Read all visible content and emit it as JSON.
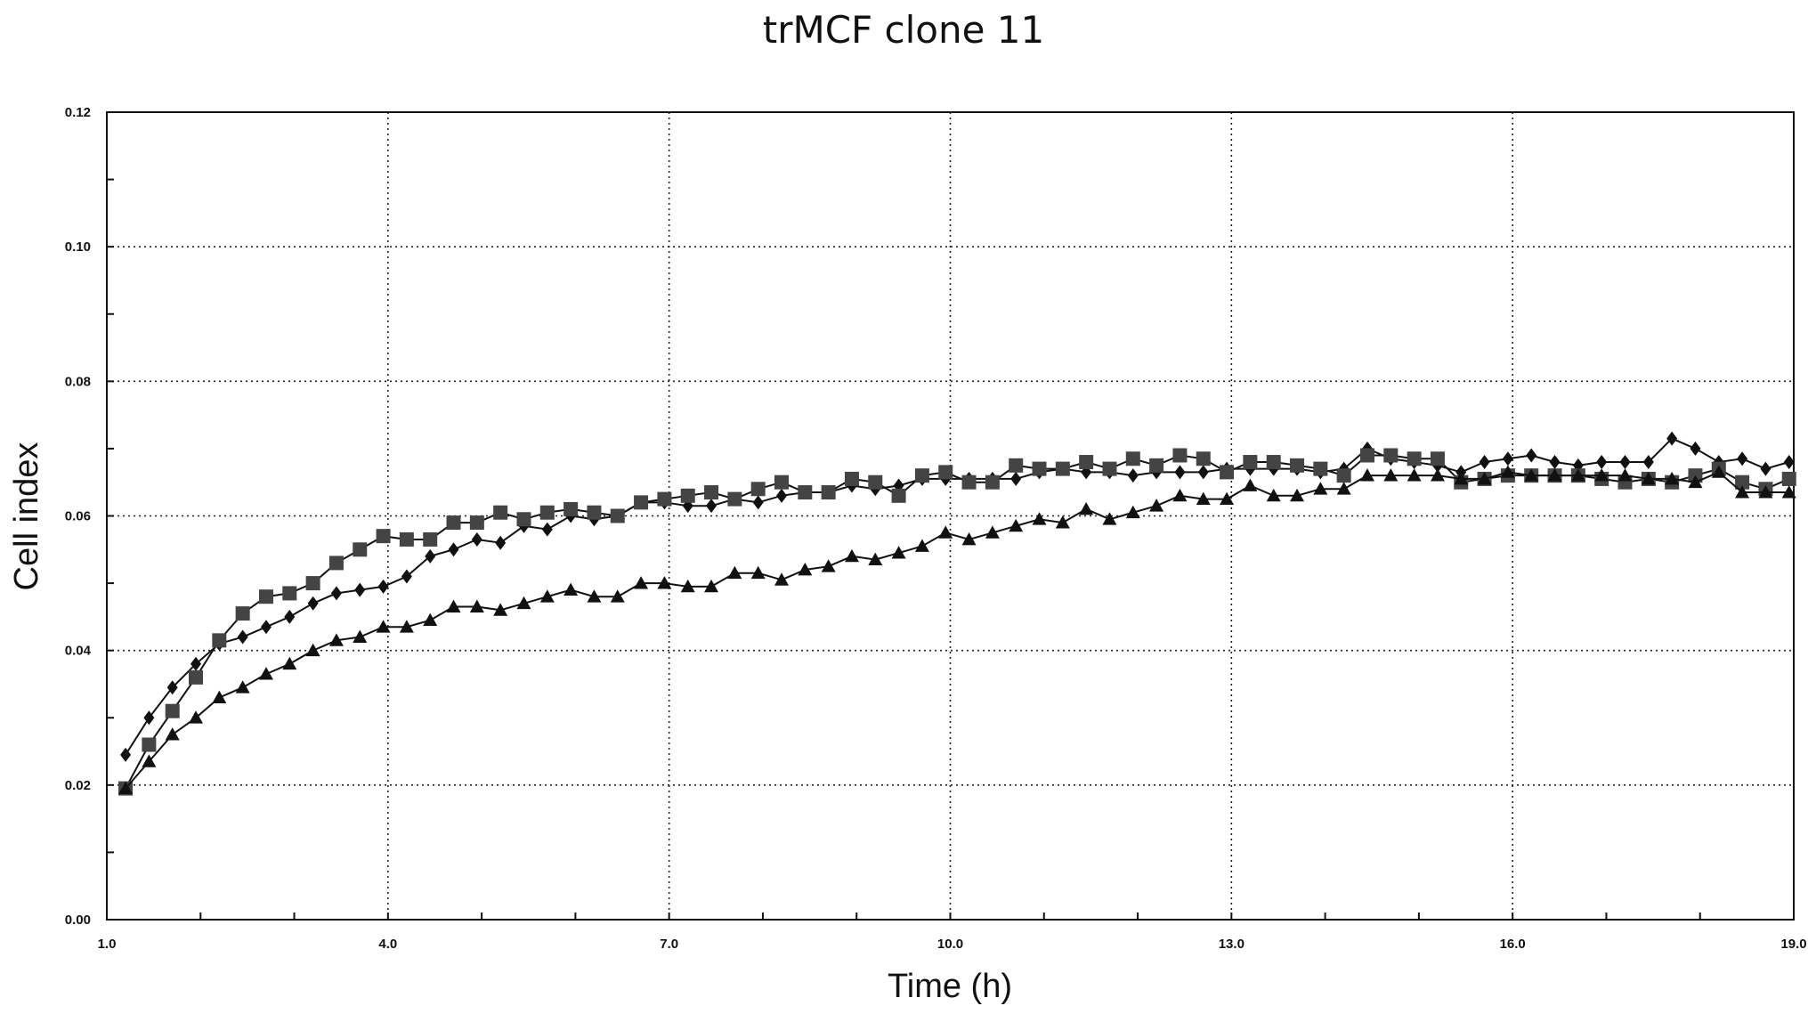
{
  "chart_data": {
    "type": "line",
    "title": "trMCF clone 11",
    "xlabel": "Time (h)",
    "ylabel": "Cell index",
    "xlim": [
      1.0,
      19.0
    ],
    "ylim": [
      0.0,
      0.12
    ],
    "x_ticks": [
      1.0,
      4.0,
      7.0,
      10.0,
      13.0,
      16.0,
      19.0
    ],
    "x_tick_labels": [
      "1.0",
      "4.0",
      "7.0",
      "10.0",
      "13.0",
      "16.0",
      "19.0"
    ],
    "y_ticks": [
      0.0,
      0.02,
      0.04,
      0.06,
      0.08,
      0.1,
      0.12
    ],
    "y_tick_labels": [
      "0.00",
      "0.02",
      "0.04",
      "0.06",
      "0.08",
      "0.10",
      "0.12"
    ],
    "grid": true,
    "x": [
      1.2,
      1.45,
      1.7,
      1.95,
      2.2,
      2.45,
      2.7,
      2.95,
      3.2,
      3.45,
      3.7,
      3.95,
      4.2,
      4.45,
      4.7,
      4.95,
      5.2,
      5.45,
      5.7,
      5.95,
      6.2,
      6.45,
      6.7,
      6.95,
      7.2,
      7.45,
      7.7,
      7.95,
      8.2,
      8.45,
      8.7,
      8.95,
      9.2,
      9.45,
      9.7,
      9.95,
      10.2,
      10.45,
      10.7,
      10.95,
      11.2,
      11.45,
      11.7,
      11.95,
      12.2,
      12.45,
      12.7,
      12.95,
      13.2,
      13.45,
      13.7,
      13.95,
      14.2,
      14.45,
      14.7,
      14.95,
      15.2,
      15.45,
      15.7,
      15.95,
      16.2,
      16.45,
      16.7,
      16.95,
      17.2,
      17.45,
      17.7,
      17.95,
      18.2,
      18.45,
      18.7,
      18.95
    ],
    "series": [
      {
        "marker": "diamond",
        "values": [
          0.0245,
          0.03,
          0.0345,
          0.038,
          0.041,
          0.042,
          0.0435,
          0.045,
          0.047,
          0.0485,
          0.049,
          0.0495,
          0.051,
          0.054,
          0.055,
          0.0565,
          0.056,
          0.0585,
          0.058,
          0.06,
          0.0595,
          0.06,
          0.062,
          0.062,
          0.0615,
          0.0615,
          0.0625,
          0.062,
          0.063,
          0.0635,
          0.0635,
          0.0645,
          0.064,
          0.0645,
          0.0655,
          0.0655,
          0.0655,
          0.0655,
          0.0655,
          0.0665,
          0.067,
          0.0665,
          0.0665,
          0.066,
          0.0665,
          0.0665,
          0.0665,
          0.067,
          0.067,
          0.067,
          0.067,
          0.0665,
          0.067,
          0.07,
          0.0685,
          0.068,
          0.0675,
          0.0665,
          0.068,
          0.0685,
          0.069,
          0.068,
          0.0675,
          0.068,
          0.068,
          0.068,
          0.0715,
          0.07,
          0.068,
          0.0685,
          0.067,
          0.068
        ]
      },
      {
        "marker": "square",
        "values": [
          0.0195,
          0.026,
          0.031,
          0.036,
          0.0415,
          0.0455,
          0.048,
          0.0485,
          0.05,
          0.053,
          0.055,
          0.057,
          0.0565,
          0.0565,
          0.059,
          0.059,
          0.0605,
          0.0595,
          0.0605,
          0.061,
          0.0605,
          0.06,
          0.062,
          0.0625,
          0.063,
          0.0635,
          0.0625,
          0.064,
          0.065,
          0.0635,
          0.0635,
          0.0655,
          0.065,
          0.063,
          0.066,
          0.0665,
          0.065,
          0.065,
          0.0675,
          0.067,
          0.067,
          0.068,
          0.067,
          0.0685,
          0.0675,
          0.069,
          0.0685,
          0.0665,
          0.068,
          0.068,
          0.0675,
          0.067,
          0.066,
          0.069,
          0.069,
          0.0685,
          0.0685,
          0.065,
          0.0655,
          0.066,
          0.066,
          0.066,
          0.066,
          0.0655,
          0.065,
          0.0655,
          0.065,
          0.066,
          0.067,
          0.065,
          0.064,
          0.0655
        ]
      },
      {
        "marker": "triangle",
        "values": [
          0.0195,
          0.0235,
          0.0275,
          0.03,
          0.033,
          0.0345,
          0.0365,
          0.038,
          0.04,
          0.0415,
          0.042,
          0.0435,
          0.0435,
          0.0445,
          0.0465,
          0.0465,
          0.046,
          0.047,
          0.048,
          0.049,
          0.048,
          0.048,
          0.05,
          0.05,
          0.0495,
          0.0495,
          0.0515,
          0.0515,
          0.0505,
          0.052,
          0.0525,
          0.054,
          0.0535,
          0.0545,
          0.0555,
          0.0575,
          0.0565,
          0.0575,
          0.0585,
          0.0595,
          0.059,
          0.061,
          0.0595,
          0.0605,
          0.0615,
          0.063,
          0.0625,
          0.0625,
          0.0645,
          0.063,
          0.063,
          0.064,
          0.064,
          0.066,
          0.066,
          0.066,
          0.066,
          0.0655,
          0.0655,
          0.0665,
          0.066,
          0.066,
          0.066,
          0.066,
          0.066,
          0.0655,
          0.0655,
          0.065,
          0.0665,
          0.0635,
          0.0635,
          0.0635
        ]
      }
    ]
  }
}
